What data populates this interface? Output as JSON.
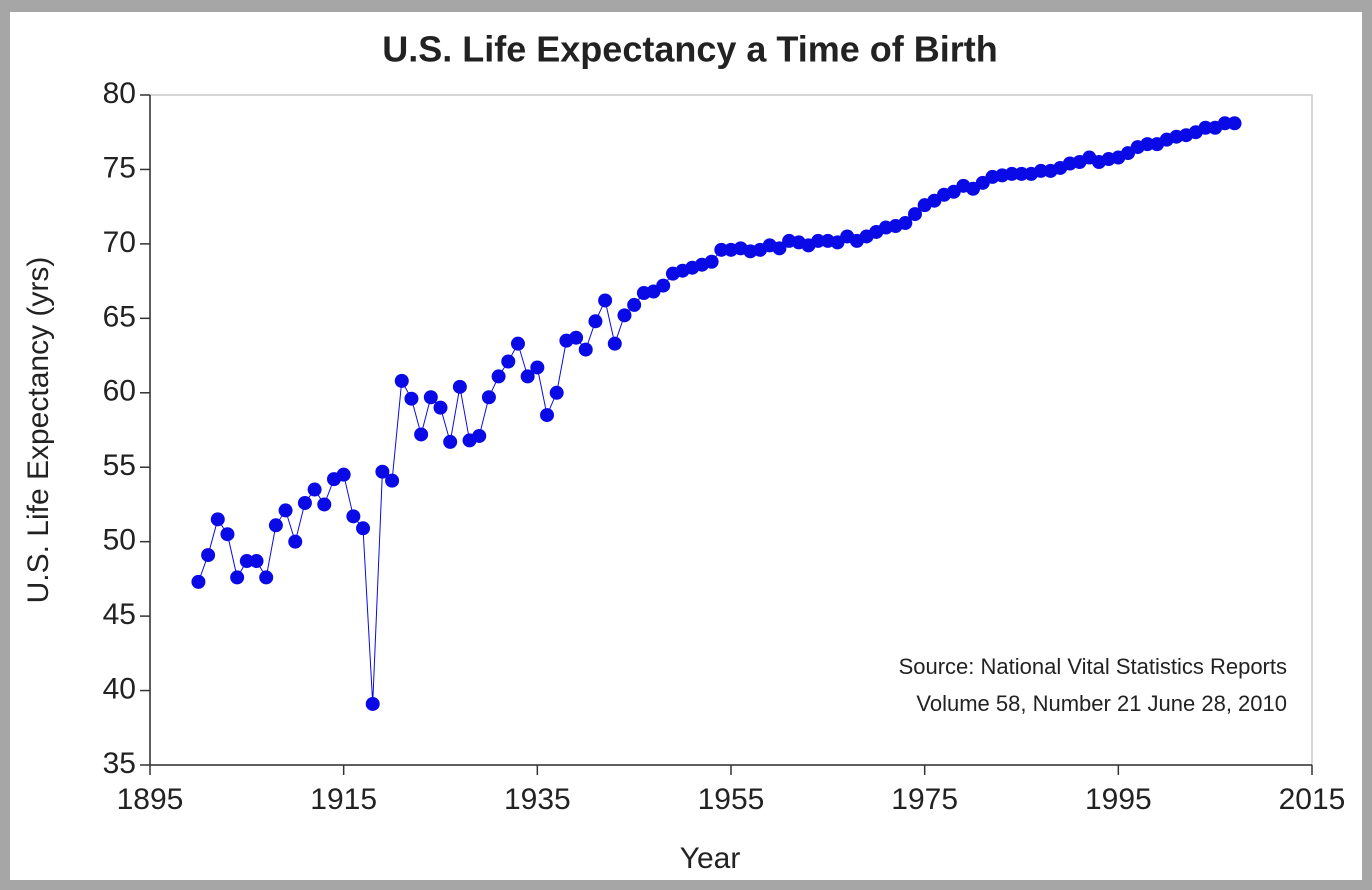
{
  "chart_data": {
    "type": "line",
    "title": "U.S. Life Expectancy a Time of Birth",
    "x_label": "Year",
    "y_label": "U.S. Life Expectancy (yrs)",
    "annotations": [
      "Source: National Vital Statistics Reports",
      "Volume 58, Number 21 June 28, 2010"
    ],
    "x": [
      1900,
      1901,
      1902,
      1903,
      1904,
      1905,
      1906,
      1907,
      1908,
      1909,
      1910,
      1911,
      1912,
      1913,
      1914,
      1915,
      1916,
      1917,
      1918,
      1919,
      1920,
      1921,
      1922,
      1923,
      1924,
      1925,
      1926,
      1927,
      1928,
      1929,
      1930,
      1931,
      1932,
      1933,
      1934,
      1935,
      1936,
      1937,
      1938,
      1939,
      1940,
      1941,
      1942,
      1943,
      1944,
      1945,
      1946,
      1947,
      1948,
      1949,
      1950,
      1951,
      1952,
      1953,
      1954,
      1955,
      1956,
      1957,
      1958,
      1959,
      1960,
      1961,
      1962,
      1963,
      1964,
      1965,
      1966,
      1967,
      1968,
      1969,
      1970,
      1971,
      1972,
      1973,
      1974,
      1975,
      1976,
      1977,
      1978,
      1979,
      1980,
      1981,
      1982,
      1983,
      1984,
      1985,
      1986,
      1987,
      1988,
      1989,
      1990,
      1991,
      1992,
      1993,
      1994,
      1995,
      1996,
      1997,
      1998,
      1999,
      2000,
      2001,
      2002,
      2003,
      2004,
      2005,
      2006,
      2007
    ],
    "series": [
      {
        "color": "#0a0ae6",
        "values": [
          47.3,
          49.1,
          51.5,
          50.5,
          47.6,
          48.7,
          48.7,
          47.6,
          51.1,
          52.1,
          50.0,
          52.6,
          53.5,
          52.5,
          54.2,
          54.5,
          51.7,
          50.9,
          39.1,
          54.7,
          54.1,
          60.8,
          59.6,
          57.2,
          59.7,
          59.0,
          56.7,
          60.4,
          56.8,
          57.1,
          59.7,
          61.1,
          62.1,
          63.3,
          61.1,
          61.7,
          58.5,
          60.0,
          63.5,
          63.7,
          62.9,
          64.8,
          66.2,
          63.3,
          65.2,
          65.9,
          66.7,
          66.8,
          67.2,
          68.0,
          68.2,
          68.4,
          68.6,
          68.8,
          69.6,
          69.6,
          69.7,
          69.5,
          69.6,
          69.9,
          69.7,
          70.2,
          70.1,
          69.9,
          70.2,
          70.2,
          70.1,
          70.5,
          70.2,
          70.5,
          70.8,
          71.1,
          71.2,
          71.4,
          72.0,
          72.6,
          72.9,
          73.3,
          73.5,
          73.9,
          73.7,
          74.1,
          74.5,
          74.6,
          74.7,
          74.7,
          74.7,
          74.9,
          74.9,
          75.1,
          75.4,
          75.5,
          75.8,
          75.5,
          75.7,
          75.8,
          76.1,
          76.5,
          76.7,
          76.7,
          77.0,
          77.2,
          77.3,
          77.5,
          77.8,
          77.8,
          78.1,
          78.1
        ]
      }
    ],
    "xlim": [
      1895,
      2015
    ],
    "xticks": [
      1895,
      1915,
      1935,
      1955,
      1975,
      1995,
      2015
    ],
    "ylim": [
      35,
      80
    ],
    "yticks": [
      35,
      40,
      45,
      50,
      55,
      60,
      65,
      70,
      75,
      80
    ],
    "grid": false
  }
}
